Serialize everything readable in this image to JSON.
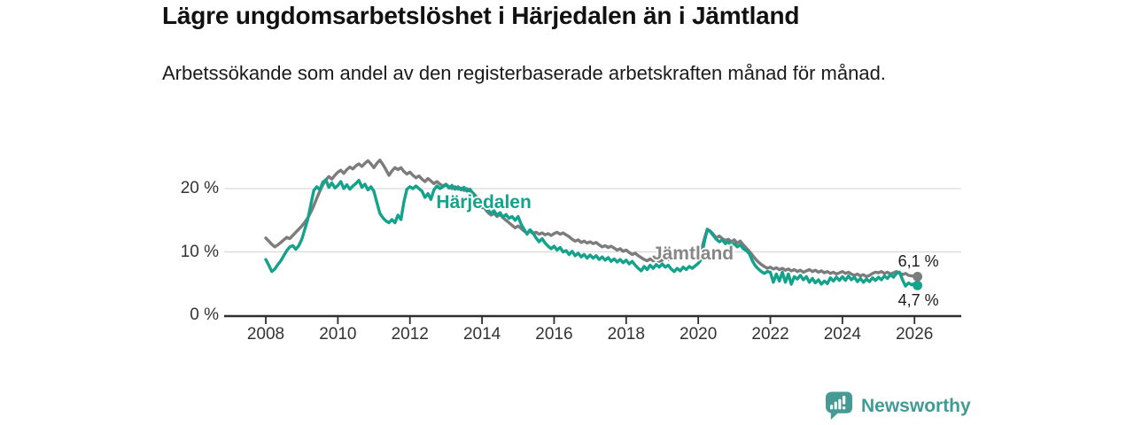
{
  "title": "Lägre ungdomsarbetslöshet i Härjedalen än i Jämtland",
  "subtitle": "Arbetssökande som andel av den registerbaserade arbetskraften månad för månad.",
  "branding": {
    "name": "Newsworthy",
    "icon": "newsworthy-speech-bubble-bar-chart-icon",
    "color": "#3f9b94"
  },
  "chart_data": {
    "type": "line",
    "unit": "%",
    "grid": "horizontal",
    "x_start_year": 2008,
    "x_step_months": 1,
    "xlim": [
      2006.85,
      2027.3
    ],
    "ylim": [
      0,
      26
    ],
    "x_ticks": [
      {
        "value": 2008,
        "label": "2008"
      },
      {
        "value": 2010,
        "label": "2010"
      },
      {
        "value": 2012,
        "label": "2012"
      },
      {
        "value": 2014,
        "label": "2014"
      },
      {
        "value": 2016,
        "label": "2016"
      },
      {
        "value": 2018,
        "label": "2018"
      },
      {
        "value": 2020,
        "label": "2020"
      },
      {
        "value": 2022,
        "label": "2022"
      },
      {
        "value": 2024,
        "label": "2024"
      },
      {
        "value": 2026,
        "label": "2026"
      }
    ],
    "y_ticks": [
      {
        "value": 0,
        "label": "0 %"
      },
      {
        "value": 10,
        "label": "10 %"
      },
      {
        "value": 20,
        "label": "20 %"
      }
    ],
    "axis_color": "#2e2e2e",
    "grid_color": "#d9d9d9",
    "series": [
      {
        "name": "Jämtland",
        "color": "#7c7c7c",
        "label_color": "#868686",
        "end_label": "6,1 %",
        "end_value": 6.1,
        "label_anchor": {
          "x": 2019.85,
          "y": 9.6
        },
        "values": [
          12.2,
          11.7,
          11.2,
          10.8,
          11.1,
          11.5,
          11.9,
          12.3,
          12.1,
          12.6,
          13.1,
          13.6,
          14.1,
          14.7,
          15.4,
          16.3,
          17.3,
          18.5,
          19.6,
          20.6,
          21.4,
          21.9,
          21.5,
          22.1,
          22.6,
          22.9,
          22.4,
          23.0,
          23.4,
          23.1,
          23.6,
          23.9,
          23.5,
          24.0,
          24.4,
          23.9,
          23.3,
          24.0,
          24.5,
          23.8,
          23.0,
          22.1,
          22.8,
          23.3,
          23.0,
          23.3,
          22.7,
          22.3,
          22.6,
          22.1,
          21.7,
          22.0,
          21.5,
          21.1,
          21.6,
          21.2,
          20.8,
          21.1,
          20.7,
          20.4,
          20.7,
          20.3,
          20.0,
          20.3,
          19.9,
          20.1,
          19.7,
          20.0,
          19.6,
          19.3,
          18.8,
          18.1,
          17.4,
          16.8,
          16.2,
          15.8,
          16.1,
          15.6,
          15.9,
          15.4,
          15.0,
          14.6,
          14.2,
          13.8,
          14.1,
          13.7,
          13.3,
          13.0,
          13.3,
          12.9,
          13.1,
          12.8,
          13.0,
          12.7,
          12.9,
          12.6,
          12.9,
          13.1,
          12.8,
          13.0,
          12.7,
          12.4,
          12.0,
          11.7,
          11.9,
          11.5,
          11.7,
          11.4,
          11.6,
          11.3,
          11.5,
          11.1,
          10.8,
          11.0,
          10.7,
          10.9,
          10.6,
          10.3,
          10.5,
          10.1,
          10.3,
          9.9,
          9.6,
          9.8,
          9.4,
          9.1,
          8.8,
          8.6,
          8.9,
          8.6,
          8.8,
          8.5,
          8.7,
          9.0,
          8.8,
          9.1,
          8.9,
          9.2,
          9.0,
          9.3,
          9.1,
          9.4,
          9.2,
          9.5,
          9.7,
          10.2,
          12.0,
          13.6,
          13.3,
          12.8,
          12.2,
          12.5,
          12.1,
          11.8,
          12.0,
          11.6,
          11.9,
          11.4,
          11.7,
          11.1,
          10.6,
          10.1,
          9.5,
          8.9,
          8.4,
          8.0,
          7.7,
          7.4,
          7.6,
          7.3,
          7.5,
          7.2,
          7.4,
          7.1,
          7.3,
          7.0,
          7.2,
          6.9,
          7.1,
          6.8,
          7.0,
          7.2,
          6.9,
          7.1,
          6.8,
          7.0,
          6.7,
          6.9,
          6.6,
          6.8,
          6.5,
          6.7,
          6.9,
          6.6,
          6.8,
          6.5,
          6.3,
          6.5,
          6.2,
          6.4,
          6.1,
          6.3,
          6.6,
          6.8,
          6.7,
          6.9,
          6.6,
          6.8,
          6.5,
          6.7,
          6.9,
          6.7,
          6.4,
          6.6,
          6.3,
          6.2,
          6.2,
          6.1
        ]
      },
      {
        "name": "Härjedalen",
        "color": "#13a28b",
        "label_color": "#13a28b",
        "end_label": "4,7 %",
        "end_value": 4.7,
        "label_anchor": {
          "x": 2014.05,
          "y": 17.7
        },
        "values": [
          8.8,
          7.9,
          6.9,
          7.3,
          8.0,
          8.6,
          9.4,
          10.2,
          10.8,
          11.0,
          10.4,
          11.0,
          12.0,
          13.6,
          15.2,
          17.5,
          19.7,
          20.3,
          19.8,
          21.0,
          21.4,
          20.2,
          20.9,
          20.1,
          20.5,
          21.1,
          20.0,
          20.6,
          19.9,
          20.4,
          20.8,
          21.3,
          20.2,
          20.7,
          19.8,
          20.3,
          19.6,
          17.8,
          16.1,
          15.4,
          14.9,
          14.6,
          15.1,
          14.6,
          15.8,
          15.1,
          17.9,
          19.9,
          20.3,
          20.0,
          20.4,
          20.0,
          19.6,
          18.6,
          19.2,
          18.3,
          19.8,
          20.4,
          20.0,
          20.3,
          20.6,
          20.1,
          20.5,
          19.9,
          20.3,
          19.8,
          20.2,
          19.6,
          19.9,
          19.2,
          18.4,
          17.6,
          17.0,
          17.4,
          16.6,
          16.1,
          16.5,
          15.8,
          16.2,
          15.5,
          15.9,
          15.3,
          15.6,
          15.0,
          15.6,
          14.4,
          13.6,
          12.8,
          13.5,
          13.0,
          12.2,
          11.6,
          12.1,
          11.4,
          10.9,
          10.5,
          10.9,
          10.3,
          10.7,
          10.0,
          10.2,
          9.6,
          10.1,
          9.4,
          9.8,
          9.2,
          9.6,
          9.0,
          9.5,
          9.0,
          9.4,
          8.8,
          9.2,
          8.7,
          9.1,
          8.5,
          8.9,
          8.4,
          8.8,
          8.3,
          8.7,
          8.1,
          8.5,
          7.9,
          7.4,
          7.0,
          7.7,
          7.2,
          7.9,
          7.4,
          8.0,
          7.6,
          8.1,
          7.6,
          7.9,
          7.3,
          6.9,
          7.4,
          7.0,
          7.6,
          7.2,
          7.7,
          7.4,
          7.8,
          8.2,
          8.8,
          11.5,
          13.5,
          13.2,
          12.6,
          12.0,
          11.6,
          11.9,
          11.3,
          11.6,
          11.0,
          11.3,
          10.8,
          11.1,
          10.5,
          10.2,
          9.7,
          8.6,
          7.8,
          7.3,
          6.9,
          6.6,
          6.9,
          6.8,
          5.2,
          6.5,
          5.4,
          6.8,
          5.2,
          6.5,
          4.9,
          6.1,
          5.7,
          6.3,
          5.6,
          6.1,
          5.2,
          5.8,
          5.1,
          5.6,
          4.9,
          5.4,
          5.0,
          5.9,
          5.4,
          6.0,
          5.5,
          6.1,
          5.5,
          6.2,
          5.6,
          6.0,
          5.3,
          5.8,
          5.2,
          5.7,
          5.3,
          5.9,
          5.5,
          6.0,
          5.6,
          6.2,
          5.8,
          6.4,
          6.0,
          6.6,
          6.8,
          5.6,
          4.6,
          5.1,
          4.8,
          5.0,
          4.7
        ]
      }
    ]
  }
}
